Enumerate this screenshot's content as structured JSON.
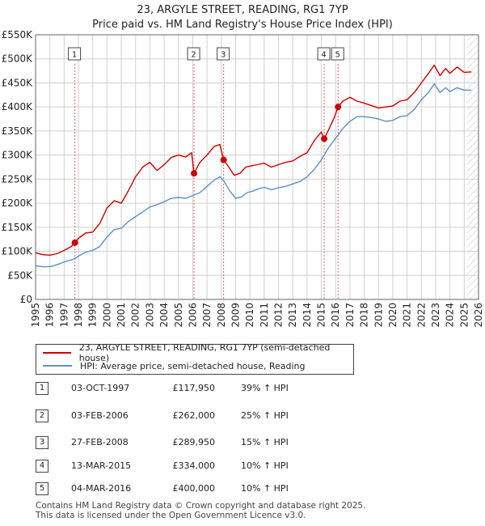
{
  "header": {
    "title_line1": "23, ARGYLE STREET, READING, RG1 7YP",
    "title_line2": "Price paid vs. HM Land Registry's House Price Index (HPI)"
  },
  "colors": {
    "price_line": "#cc0000",
    "hpi_line": "#5b8fc9",
    "grid": "#d0d0d0",
    "marker_dash": "#e06060",
    "forecast_hatch": "#c8c8c8"
  },
  "chart_data": {
    "type": "line",
    "title": "Price paid vs. HM Land Registry's House Price Index (HPI)",
    "xlabel": "",
    "ylabel": "",
    "xlim": [
      1995,
      2026
    ],
    "ylim": [
      0,
      550000
    ],
    "y_ticks": [
      0,
      50000,
      100000,
      150000,
      200000,
      250000,
      300000,
      350000,
      400000,
      450000,
      500000,
      550000
    ],
    "y_tick_labels": [
      "£0",
      "£50K",
      "£100K",
      "£150K",
      "£200K",
      "£250K",
      "£300K",
      "£350K",
      "£400K",
      "£450K",
      "£500K",
      "£550K"
    ],
    "x_ticks": [
      1995,
      1996,
      1997,
      1998,
      1999,
      2000,
      2001,
      2002,
      2003,
      2004,
      2005,
      2006,
      2007,
      2008,
      2009,
      2010,
      2011,
      2012,
      2013,
      2014,
      2015,
      2016,
      2017,
      2018,
      2019,
      2020,
      2021,
      2022,
      2023,
      2024,
      2025,
      2026
    ],
    "x_tick_labels": [
      "1995",
      "1996",
      "1997",
      "1998",
      "1999",
      "2000",
      "2001",
      "2002",
      "2003",
      "2004",
      "2005",
      "2006",
      "2007",
      "2008",
      "2009",
      "2010",
      "2011",
      "2012",
      "2013",
      "2014",
      "2015",
      "2016",
      "2017",
      "2018",
      "2019",
      "2020",
      "2021",
      "2022",
      "2023",
      "2024",
      "2025",
      "2026"
    ],
    "grid": true,
    "forecast_from": 2025.2,
    "series": [
      {
        "name": "23, ARGYLE STREET, READING, RG1 7YP (semi-detached house)",
        "color": "#cc0000",
        "x": [
          1995.0,
          1995.5,
          1996.0,
          1996.5,
          1997.0,
          1997.5,
          1997.75,
          1998.0,
          1998.5,
          1999.0,
          1999.5,
          2000.0,
          2000.5,
          2001.0,
          2001.5,
          2002.0,
          2002.5,
          2003.0,
          2003.5,
          2004.0,
          2004.5,
          2005.0,
          2005.5,
          2005.92,
          2006.09,
          2006.5,
          2007.0,
          2007.5,
          2007.9,
          2008.16,
          2008.5,
          2008.9,
          2009.3,
          2009.7,
          2010.0,
          2010.5,
          2011.0,
          2011.5,
          2012.0,
          2012.5,
          2013.0,
          2013.5,
          2014.0,
          2014.5,
          2015.0,
          2015.2,
          2015.5,
          2015.9,
          2016.17,
          2016.5,
          2017.0,
          2017.5,
          2018.0,
          2018.5,
          2019.0,
          2019.5,
          2020.0,
          2020.5,
          2021.0,
          2021.5,
          2022.0,
          2022.5,
          2022.9,
          2023.3,
          2023.7,
          2024.0,
          2024.5,
          2025.0,
          2025.5
        ],
        "y": [
          97000,
          93000,
          92000,
          95000,
          102000,
          110000,
          117950,
          127000,
          138000,
          140000,
          158000,
          190000,
          205000,
          200000,
          226000,
          255000,
          275000,
          285000,
          268000,
          280000,
          295000,
          300000,
          296000,
          305000,
          262000,
          285000,
          300000,
          318000,
          322000,
          289950,
          276000,
          258000,
          262000,
          275000,
          277000,
          280000,
          283000,
          275000,
          280000,
          285000,
          288000,
          297000,
          305000,
          330000,
          348000,
          334000,
          352000,
          378000,
          400000,
          412000,
          420000,
          412000,
          408000,
          403000,
          398000,
          400000,
          402000,
          412000,
          415000,
          430000,
          450000,
          470000,
          487000,
          465000,
          480000,
          470000,
          483000,
          472000,
          473000
        ]
      },
      {
        "name": "HPI: Average price, semi-detached house, Reading",
        "color": "#5b8fc9",
        "x": [
          1995.0,
          1995.5,
          1996.0,
          1996.5,
          1997.0,
          1997.5,
          1997.75,
          1998.0,
          1998.5,
          1999.0,
          1999.5,
          2000.0,
          2000.5,
          2001.0,
          2001.5,
          2002.0,
          2002.5,
          2003.0,
          2003.5,
          2004.0,
          2004.5,
          2005.0,
          2005.5,
          2006.0,
          2006.5,
          2007.0,
          2007.5,
          2007.9,
          2008.2,
          2008.6,
          2009.0,
          2009.4,
          2009.8,
          2010.2,
          2010.6,
          2011.0,
          2011.5,
          2012.0,
          2012.5,
          2013.0,
          2013.5,
          2014.0,
          2014.5,
          2015.0,
          2015.5,
          2016.0,
          2016.5,
          2017.0,
          2017.5,
          2018.0,
          2018.5,
          2019.0,
          2019.5,
          2020.0,
          2020.5,
          2021.0,
          2021.5,
          2022.0,
          2022.5,
          2022.9,
          2023.3,
          2023.7,
          2024.0,
          2024.5,
          2025.0,
          2025.5
        ],
        "y": [
          70000,
          68000,
          68000,
          72000,
          78000,
          82000,
          85000,
          90000,
          98000,
          102000,
          110000,
          130000,
          145000,
          148000,
          162000,
          172000,
          182000,
          192000,
          197000,
          203000,
          210000,
          212000,
          210000,
          216000,
          222000,
          235000,
          248000,
          255000,
          245000,
          225000,
          210000,
          213000,
          222000,
          225000,
          230000,
          233000,
          228000,
          232000,
          235000,
          240000,
          245000,
          255000,
          270000,
          290000,
          315000,
          335000,
          355000,
          370000,
          380000,
          380000,
          378000,
          375000,
          370000,
          372000,
          380000,
          382000,
          395000,
          415000,
          430000,
          448000,
          430000,
          440000,
          432000,
          440000,
          435000,
          435000
        ]
      }
    ],
    "transactions": [
      {
        "label": "1",
        "x": 1997.75,
        "y": 117950
      },
      {
        "label": "2",
        "x": 2006.09,
        "y": 262000
      },
      {
        "label": "3",
        "x": 2008.16,
        "y": 289950
      },
      {
        "label": "4",
        "x": 2015.2,
        "y": 334000
      },
      {
        "label": "5",
        "x": 2016.17,
        "y": 400000
      }
    ]
  },
  "legend": {
    "items": [
      {
        "label": "23, ARGYLE STREET, READING, RG1 7YP (semi-detached house)",
        "color": "#cc0000"
      },
      {
        "label": "HPI: Average price, semi-detached house, Reading",
        "color": "#5b8fc9"
      }
    ]
  },
  "transactions_table": [
    {
      "num": "1",
      "date": "03-OCT-1997",
      "price": "£117,950",
      "hpi": "39% ↑ HPI"
    },
    {
      "num": "2",
      "date": "03-FEB-2006",
      "price": "£262,000",
      "hpi": "25% ↑ HPI"
    },
    {
      "num": "3",
      "date": "27-FEB-2008",
      "price": "£289,950",
      "hpi": "15% ↑ HPI"
    },
    {
      "num": "4",
      "date": "13-MAR-2015",
      "price": "£334,000",
      "hpi": "10% ↑ HPI"
    },
    {
      "num": "5",
      "date": "04-MAR-2016",
      "price": "£400,000",
      "hpi": "10% ↑ HPI"
    }
  ],
  "footer": {
    "line1": "Contains HM Land Registry data © Crown copyright and database right 2025.",
    "line2": "This data is licensed under the Open Government Licence v3.0."
  }
}
